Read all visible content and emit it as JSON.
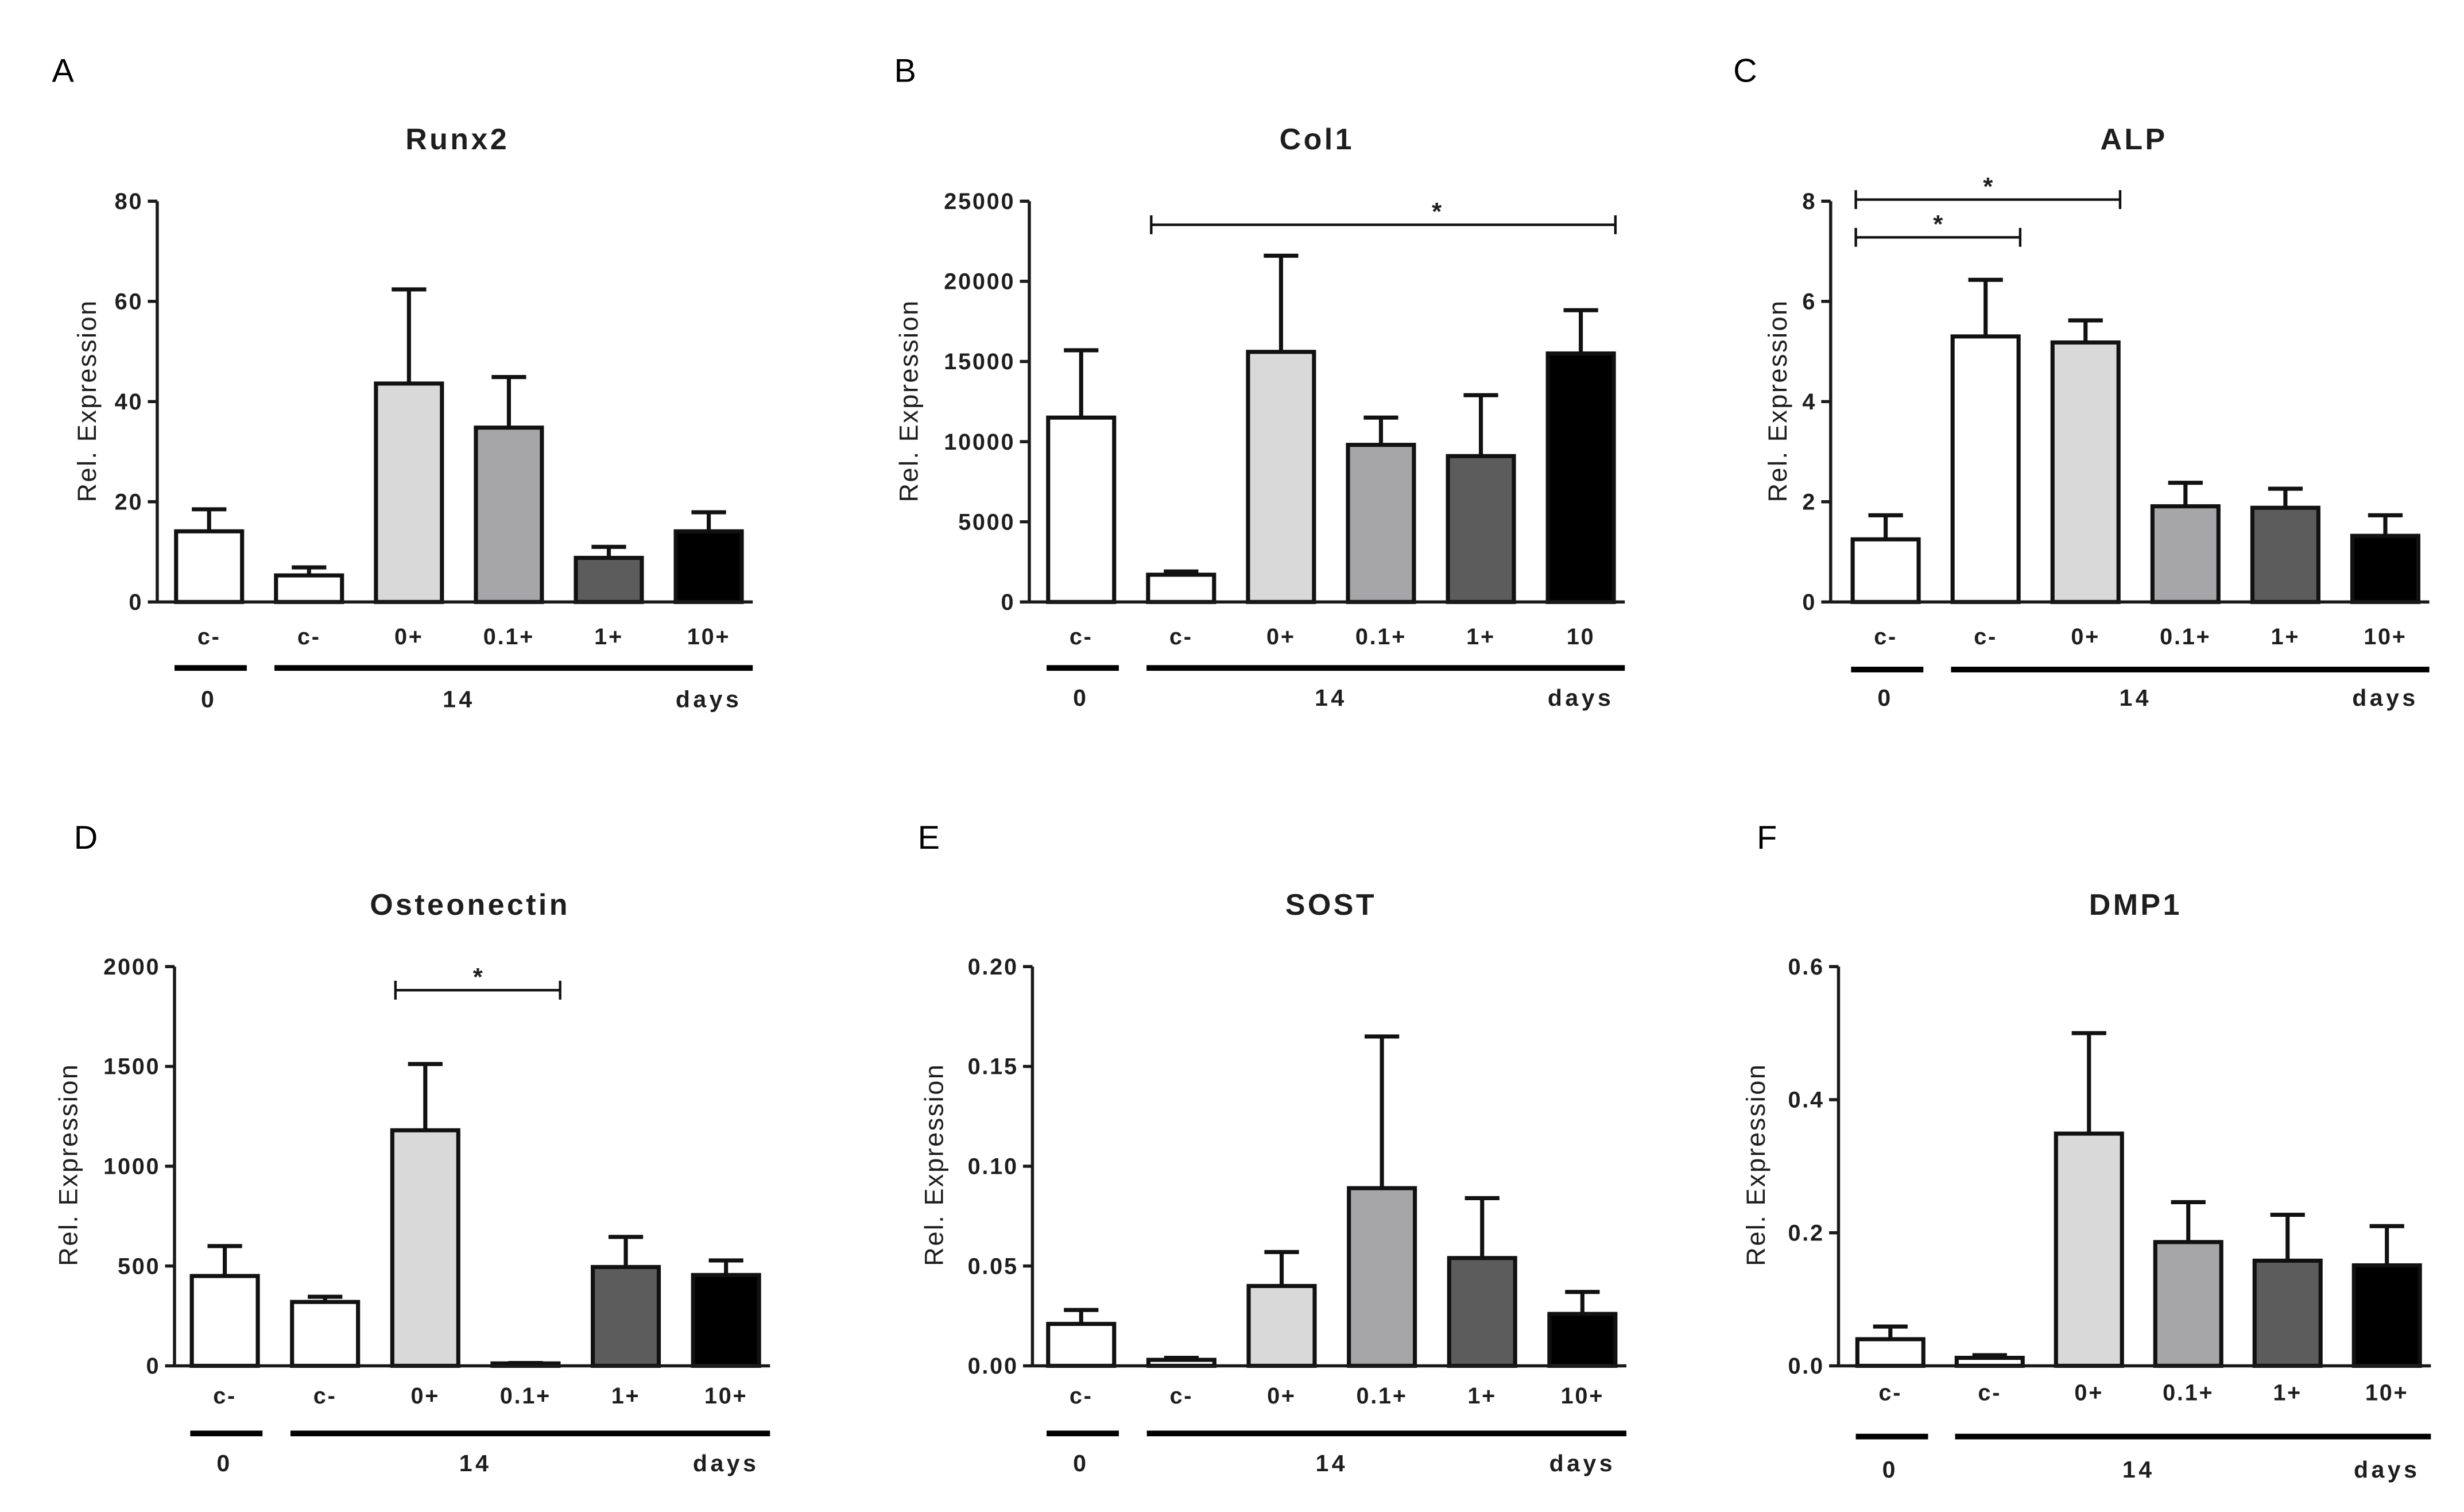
{
  "chart_data": [
    {
      "panel": "A",
      "type": "bar",
      "title": "Runx2",
      "xlabel": "",
      "ylabel": "Rel. Expression",
      "ylim": [
        0,
        80
      ],
      "yticks": [
        0,
        20,
        40,
        60,
        80
      ],
      "ytick_labels": [
        "0",
        "20",
        "40",
        "60",
        "80"
      ],
      "categories": [
        "c-",
        "c-",
        "0+",
        "0.1+",
        "1+",
        "10+"
      ],
      "values": [
        14.1,
        5.3,
        43.6,
        34.8,
        8.8,
        14.1
      ],
      "errors": [
        4.4,
        1.6,
        18.8,
        10.1,
        2.2,
        3.8
      ],
      "bar_colors": [
        "#ffffff",
        "#ffffff",
        "#d9d9d9",
        "#a6a6a9",
        "#5c5c5c",
        "#000000"
      ],
      "groups": [
        {
          "label": "0",
          "from": 0,
          "to": 0
        },
        {
          "label": "14",
          "from": 1,
          "to": 5
        }
      ],
      "group_unit": "days",
      "significance": []
    },
    {
      "panel": "B",
      "type": "bar",
      "title": "Col1",
      "xlabel": "",
      "ylabel": "Rel. Expression",
      "ylim": [
        0,
        25000
      ],
      "yticks": [
        0,
        5000,
        10000,
        15000,
        20000,
        25000
      ],
      "ytick_labels": [
        "0",
        "5000",
        "10000",
        "15000",
        "20000",
        "25000"
      ],
      "categories": [
        "c-",
        "c-",
        "0+",
        "0.1+",
        "1+",
        "10"
      ],
      "values": [
        11500,
        1700,
        15600,
        9800,
        9100,
        15500
      ],
      "errors": [
        4200,
        200,
        6000,
        1700,
        3800,
        2700
      ],
      "bar_colors": [
        "#ffffff",
        "#ffffff",
        "#d9d9d9",
        "#a6a6a9",
        "#5c5c5c",
        "#000000"
      ],
      "groups": [
        {
          "label": "0",
          "from": 0,
          "to": 0
        },
        {
          "label": "14",
          "from": 1,
          "to": 5
        }
      ],
      "group_unit": "days",
      "significance": [
        {
          "from": 1,
          "to": 5,
          "label": "*"
        }
      ]
    },
    {
      "panel": "C",
      "type": "bar",
      "title": "ALP",
      "xlabel": "",
      "ylabel": "Rel. Expression",
      "ylim": [
        0,
        8
      ],
      "yticks": [
        0,
        2,
        4,
        6,
        8
      ],
      "ytick_labels": [
        "0",
        "2",
        "4",
        "6",
        "8"
      ],
      "categories": [
        "c-",
        "c-",
        "0+",
        "0.1+",
        "1+",
        "10+"
      ],
      "values": [
        1.25,
        5.3,
        5.18,
        1.91,
        1.88,
        1.32
      ],
      "errors": [
        0.48,
        1.13,
        0.44,
        0.47,
        0.38,
        0.41
      ],
      "bar_colors": [
        "#ffffff",
        "#ffffff",
        "#d9d9d9",
        "#a6a6a9",
        "#5c5c5c",
        "#000000"
      ],
      "groups": [
        {
          "label": "0",
          "from": 0,
          "to": 0
        },
        {
          "label": "14",
          "from": 1,
          "to": 5
        }
      ],
      "group_unit": "days",
      "significance": [
        {
          "from": 0,
          "to": 2,
          "label": "*"
        },
        {
          "from": 0,
          "to": 1,
          "label": "*"
        }
      ]
    },
    {
      "panel": "D",
      "type": "bar",
      "title": "Osteonectin",
      "xlabel": "",
      "ylabel": "Rel. Expression",
      "ylim": [
        0,
        2000
      ],
      "yticks": [
        0,
        500,
        1000,
        1500,
        2000
      ],
      "ytick_labels": [
        "0",
        "500",
        "1000",
        "1500",
        "2000"
      ],
      "categories": [
        "c-",
        "c-",
        "0+",
        "0.1+",
        "1+",
        "10+"
      ],
      "values": [
        450,
        320,
        1180,
        12,
        495,
        455
      ],
      "errors": [
        150,
        26,
        332,
        2,
        151,
        73
      ],
      "bar_colors": [
        "#ffffff",
        "#ffffff",
        "#d9d9d9",
        "#a6a6a9",
        "#5c5c5c",
        "#000000"
      ],
      "groups": [
        {
          "label": "0",
          "from": 0,
          "to": 0
        },
        {
          "label": "14",
          "from": 1,
          "to": 5
        }
      ],
      "group_unit": "days",
      "significance": [
        {
          "from": 2,
          "to": 3,
          "label": "*"
        }
      ]
    },
    {
      "panel": "E",
      "type": "bar",
      "title": "SOST",
      "xlabel": "",
      "ylabel": "Rel. Expression",
      "ylim": [
        0,
        0.2
      ],
      "yticks": [
        0,
        0.05,
        0.1,
        0.15,
        0.2
      ],
      "ytick_labels": [
        "0.00",
        "0.05",
        "0.10",
        "0.15",
        "0.20"
      ],
      "categories": [
        "c-",
        "c-",
        "0+",
        "0.1+",
        "1+",
        "10+"
      ],
      "values": [
        0.021,
        0.003,
        0.04,
        0.089,
        0.054,
        0.026
      ],
      "errors": [
        0.007,
        0.001,
        0.017,
        0.076,
        0.03,
        0.011
      ],
      "bar_colors": [
        "#ffffff",
        "#ffffff",
        "#d9d9d9",
        "#a6a6a9",
        "#5c5c5c",
        "#000000"
      ],
      "groups": [
        {
          "label": "0",
          "from": 0,
          "to": 0
        },
        {
          "label": "14",
          "from": 1,
          "to": 5
        }
      ],
      "group_unit": "days",
      "significance": []
    },
    {
      "panel": "F",
      "type": "bar",
      "title": "DMP1",
      "xlabel": "",
      "ylabel": "Rel. Expression",
      "ylim": [
        0,
        0.6
      ],
      "yticks": [
        0,
        0.2,
        0.4,
        0.6
      ],
      "ytick_labels": [
        "0.0",
        "0.2",
        "0.4",
        "0.6"
      ],
      "categories": [
        "c-",
        "c-",
        "0+",
        "0.1+",
        "1+",
        "10+"
      ],
      "values": [
        0.04,
        0.012,
        0.349,
        0.186,
        0.158,
        0.151
      ],
      "errors": [
        0.019,
        0.004,
        0.151,
        0.06,
        0.069,
        0.059
      ],
      "bar_colors": [
        "#ffffff",
        "#ffffff",
        "#d9d9d9",
        "#a6a6a9",
        "#5c5c5c",
        "#000000"
      ],
      "groups": [
        {
          "label": "0",
          "from": 0,
          "to": 0
        },
        {
          "label": "14",
          "from": 1,
          "to": 5
        }
      ],
      "group_unit": "days",
      "significance": []
    }
  ]
}
